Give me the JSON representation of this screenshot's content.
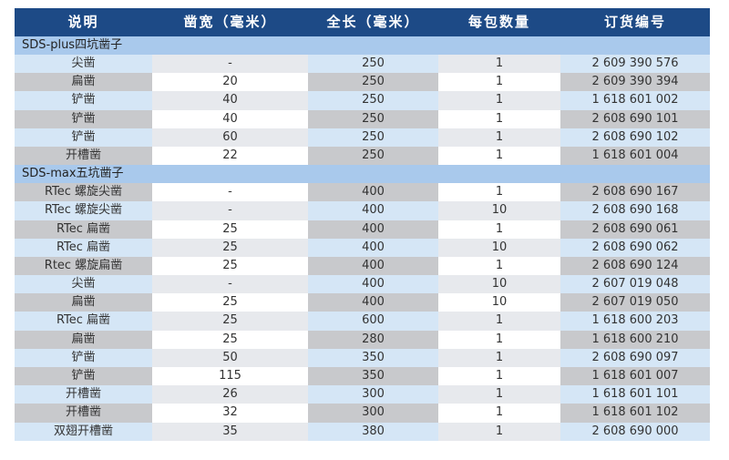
{
  "headers": [
    "说明",
    "凿宽（毫米）",
    "全长（毫米）",
    "每包数量",
    "订货编号"
  ],
  "sections": [
    {
      "title": "SDS-plus四坑凿子",
      "rows": [
        [
          "尖凿",
          "-",
          "250",
          "1",
          "2 609 390 576"
        ],
        [
          "扁凿",
          "20",
          "250",
          "1",
          "2 609 390 394"
        ],
        [
          "铲凿",
          "40",
          "250",
          "1",
          "1 618 601 002"
        ],
        [
          "铲凿",
          "40",
          "250",
          "1",
          "2 608 690 101"
        ],
        [
          "铲凿",
          "60",
          "250",
          "1",
          "2 608 690 102"
        ],
        [
          "开槽凿",
          "22",
          "250",
          "1",
          "1 618 601 004"
        ]
      ]
    },
    {
      "title": "SDS-max五坑凿子",
      "rows": [
        [
          "RTec 螺旋尖凿",
          "-",
          "400",
          "1",
          "2 608 690 167"
        ],
        [
          "RTec 螺旋尖凿",
          "-",
          "400",
          "10",
          "2 608 690 168"
        ],
        [
          "RTec 扁凿",
          "25",
          "400",
          "1",
          "2 608 690 061"
        ],
        [
          "RTec 扁凿",
          "25",
          "400",
          "10",
          "2 608 690 062"
        ],
        [
          "Rtec 螺旋扁凿",
          "25",
          "400",
          "1",
          "2 608 690 124"
        ],
        [
          "尖凿",
          "-",
          "400",
          "10",
          "2 607 019 048"
        ],
        [
          "扁凿",
          "25",
          "400",
          "10",
          "2 607 019 050"
        ],
        [
          "RTec 扁凿",
          "25",
          "600",
          "1",
          "1 618 600 203"
        ],
        [
          "扁凿",
          "25",
          "280",
          "1",
          "1 618 600 210"
        ],
        [
          "铲凿",
          "50",
          "350",
          "1",
          "2 608 690 097"
        ],
        [
          "铲凿",
          "115",
          "350",
          "1",
          "1 618 601 007"
        ],
        [
          "开槽凿",
          "26",
          "300",
          "1",
          "1 618 601 101"
        ],
        [
          "开槽凿",
          "32",
          "300",
          "1",
          "1 618 601 102"
        ],
        [
          "双翅开槽凿",
          "35",
          "380",
          "1",
          "2 608 690 000"
        ]
      ]
    }
  ]
}
